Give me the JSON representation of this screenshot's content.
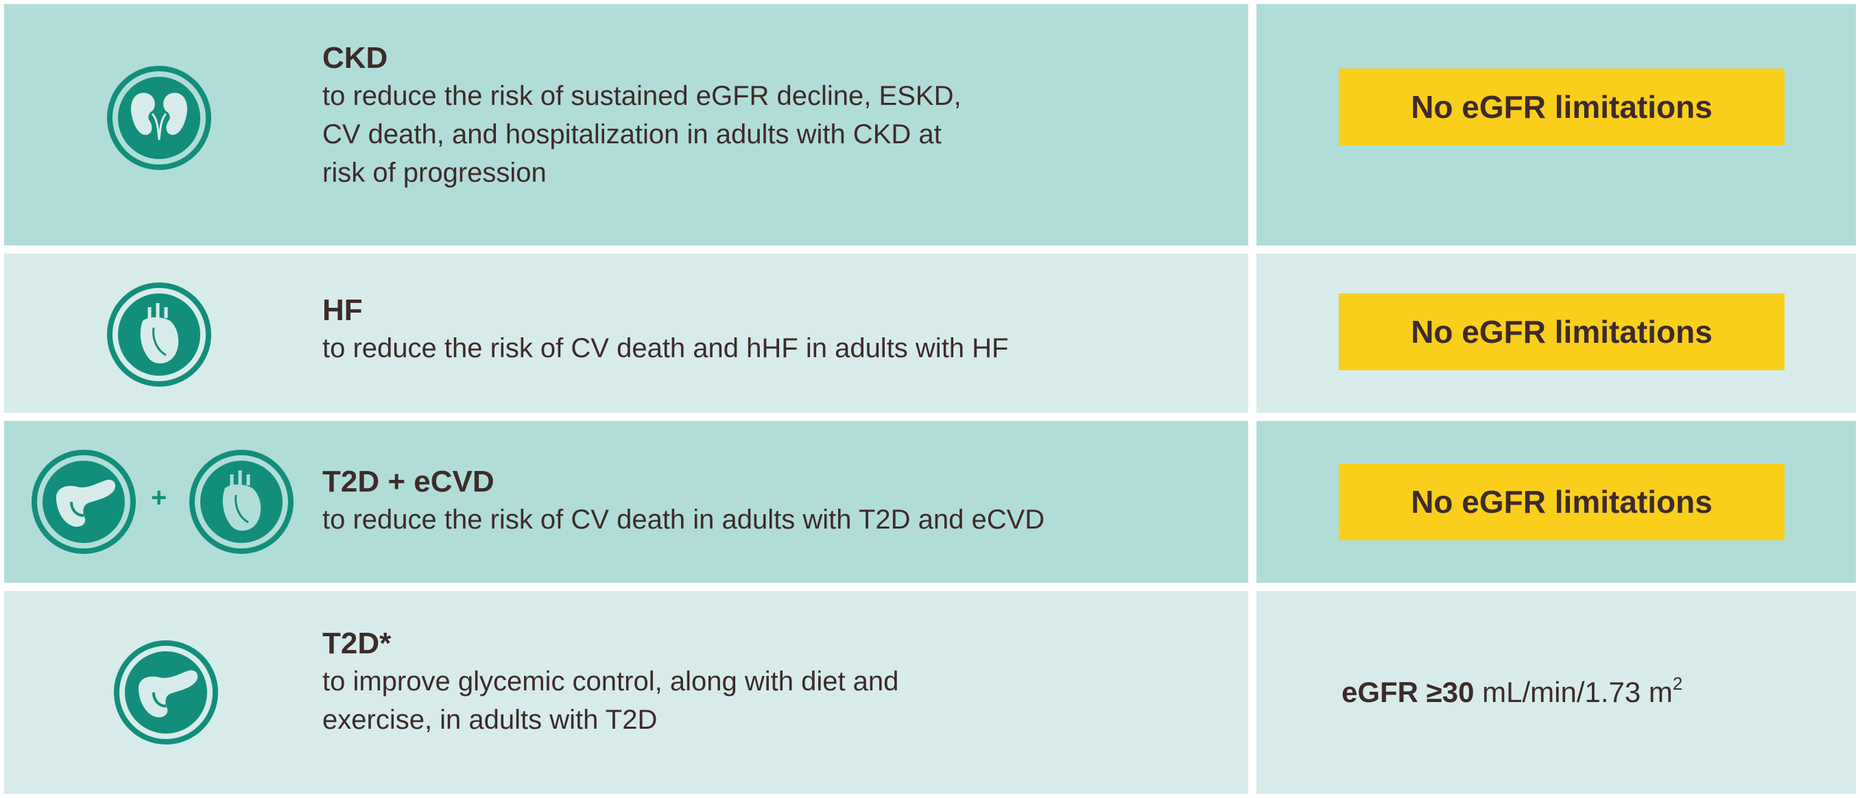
{
  "rows": [
    {
      "title": "CKD",
      "desc_lines": [
        "to reduce the risk of sustained eGFR decline, ESKD,",
        "CV death, and hospitalization in adults with CKD at",
        "risk of progression"
      ],
      "icons": [
        "kidney-icon"
      ],
      "egfr_label": "No eGFR limitations"
    },
    {
      "title": "HF",
      "desc_lines": [
        "to reduce the risk of CV death and hHF in adults with HF"
      ],
      "icons": [
        "heart-icon"
      ],
      "egfr_label": "No eGFR limitations"
    },
    {
      "title": "T2D + eCVD",
      "desc_lines": [
        "to reduce the risk of CV death in adults with T2D and eCVD"
      ],
      "icons": [
        "pancreas-icon",
        "heart-icon"
      ],
      "icon_joiner": "+",
      "egfr_label": "No eGFR limitations"
    },
    {
      "title": "T2D*",
      "desc_lines": [
        "to improve glycemic control, along with diet and",
        "exercise, in adults with T2D"
      ],
      "icons": [
        "pancreas-icon"
      ],
      "egfr_prefix": "eGFR ≥30",
      "egfr_unit": "mL/min/1.73 m",
      "egfr_superscript": "2"
    }
  ],
  "colors": {
    "row_dark": "#b1ddd9",
    "row_light": "#d7ecea",
    "badge": "#f9cf1c",
    "icon": "#138e7c",
    "text": "#3d2b2b"
  }
}
